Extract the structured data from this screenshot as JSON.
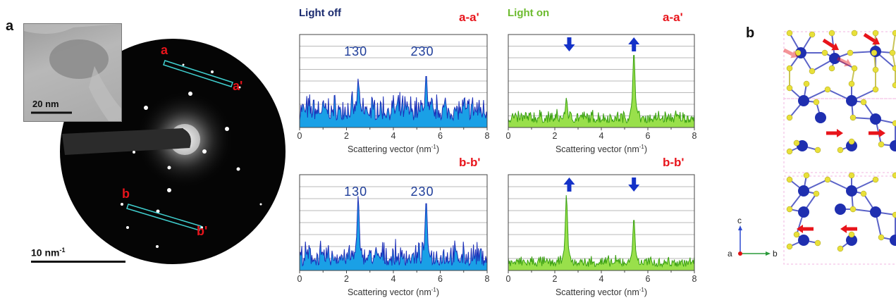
{
  "figure": {
    "panel_a_label": "a",
    "panel_b_label": "b",
    "inset_scale_label": "20 nm",
    "diffraction_scale_label": "10 nm",
    "diffraction_scale_sup": "-1",
    "spot_labels": {
      "a": "a",
      "a_prime": "a'",
      "b": "b",
      "b_prime": "b'"
    },
    "axes_labels": {
      "a": "a",
      "b": "b",
      "c": "c"
    },
    "colors": {
      "title_off": "#1a2a6e",
      "title_on": "#6dbb2f",
      "blue_fill": "#1aa0e6",
      "blue_line": "#1c2fb8",
      "green_fill": "#99e04b",
      "green_line": "#3aa012",
      "red": "#e8141b",
      "atom_blue": "#1f2fb0",
      "atom_yellow": "#e8e03a"
    }
  },
  "plots": {
    "top_left": {
      "title": "Light off",
      "tag": "a-a'",
      "peak_labels": [
        "1̄3̄0",
        "2̄3̄0"
      ]
    },
    "top_right": {
      "title": "Light on",
      "tag": "a-a'",
      "arrows": [
        "down-arrow",
        "up-arrow"
      ]
    },
    "bot_left": {
      "tag": "b-b'",
      "peak_labels": [
        "130",
        "230"
      ]
    },
    "bot_right": {
      "tag": "b-b'",
      "arrows": [
        "up-arrow",
        "down-arrow"
      ]
    },
    "xlabel": "Scattering vector (nm",
    "xlabel_sup": "-1",
    "xlabel_close": ")",
    "x_ticks": [
      "0",
      "2",
      "4",
      "6",
      "8"
    ]
  },
  "chart_data": [
    {
      "type": "area",
      "name": "Light off a-a'",
      "x_range": [
        0,
        8
      ],
      "ylim": [
        0,
        1
      ],
      "peaks_x": [
        2.5,
        5.4
      ],
      "peak_heights": [
        0.56,
        0.63
      ],
      "noise_level": 0.32
    },
    {
      "type": "area",
      "name": "Light on a-a'",
      "x_range": [
        0,
        8
      ],
      "ylim": [
        0,
        1
      ],
      "peaks_x": [
        2.5,
        5.4
      ],
      "peak_heights": [
        0.34,
        0.89
      ],
      "noise_level": 0.16
    },
    {
      "type": "area",
      "name": "Light off b-b'",
      "x_range": [
        0,
        8
      ],
      "ylim": [
        0,
        1
      ],
      "peaks_x": [
        2.5,
        5.4
      ],
      "peak_heights": [
        0.83,
        0.8
      ],
      "noise_level": 0.28
    },
    {
      "type": "area",
      "name": "Light on b-b'",
      "x_range": [
        0,
        8
      ],
      "ylim": [
        0,
        1
      ],
      "peaks_x": [
        2.5,
        5.4
      ],
      "peak_heights": [
        0.84,
        0.6
      ],
      "noise_level": 0.13
    }
  ]
}
